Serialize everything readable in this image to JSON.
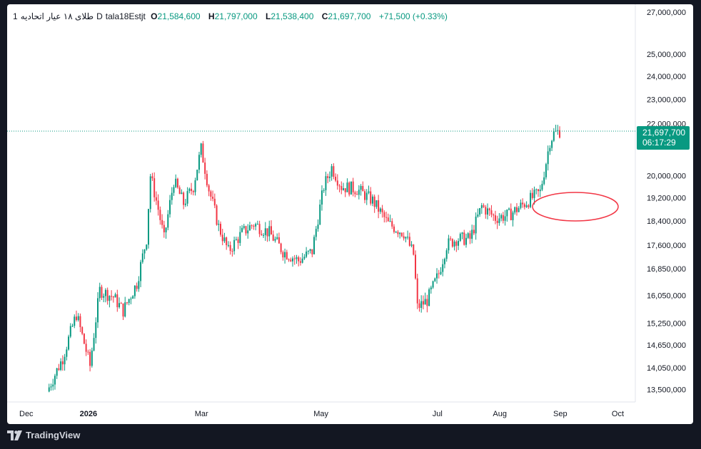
{
  "legend": {
    "interval": "1",
    "symbol": "طلای ۱۸ عیار اتحادیه",
    "timeframe": "D",
    "exchange": "tala18Estjt",
    "open_label": "O",
    "open": "21,584,600",
    "high_label": "H",
    "high": "21,797,000",
    "low_label": "L",
    "low": "21,538,400",
    "close_label": "C",
    "close": "21,697,700",
    "change": "+71,500 (+0.33%)"
  },
  "price_tag": {
    "price": "21,697,700",
    "countdown": "06:17:29"
  },
  "brand": {
    "name": "TradingView"
  },
  "colors": {
    "up": "#089981",
    "down": "#f23645",
    "background": "#ffffff",
    "frame": "#131722",
    "ellipse": "#f23645"
  },
  "chart_data": {
    "type": "candlestick",
    "x_ticks": [
      "Dec",
      "2026",
      "Mar",
      "May",
      "Jul",
      "Aug",
      "Sep",
      "Oct"
    ],
    "y_ticks": [
      "27,000,000",
      "25,000,000",
      "24,000,000",
      "23,000,000",
      "22,000,000",
      "20,000,000",
      "19,200,000",
      "18,400,000",
      "17,600,000",
      "16,850,000",
      "16,050,000",
      "15,250,000",
      "14,650,000",
      "14,050,000",
      "13,500,000"
    ],
    "y_scale": "log",
    "ylim": [
      13200000,
      27300000
    ],
    "last_price": 21697700,
    "series_path": [
      [
        "2025-12-12",
        13450000
      ],
      [
        "2025-12-20",
        14300000
      ],
      [
        "2025-12-27",
        15500000
      ],
      [
        "2026-01-03",
        14100000
      ],
      [
        "2026-01-08",
        16200000
      ],
      [
        "2026-01-15",
        16000000
      ],
      [
        "2026-01-20",
        15600000
      ],
      [
        "2026-01-27",
        16400000
      ],
      [
        "2026-02-01",
        17800000
      ],
      [
        "2026-02-03",
        20000000
      ],
      [
        "2026-02-07",
        18800000
      ],
      [
        "2026-02-10",
        17800000
      ],
      [
        "2026-02-15",
        19800000
      ],
      [
        "2026-02-20",
        19000000
      ],
      [
        "2026-02-25",
        19600000
      ],
      [
        "2026-03-01",
        21000000
      ],
      [
        "2026-03-05",
        19500000
      ],
      [
        "2026-03-10",
        18200000
      ],
      [
        "2026-03-15",
        17400000
      ],
      [
        "2026-03-22",
        18000000
      ],
      [
        "2026-03-28",
        18300000
      ],
      [
        "2026-04-05",
        18000000
      ],
      [
        "2026-04-12",
        17400000
      ],
      [
        "2026-04-20",
        17100000
      ],
      [
        "2026-04-27",
        17400000
      ],
      [
        "2026-05-03",
        19600000
      ],
      [
        "2026-05-07",
        20300000
      ],
      [
        "2026-05-12",
        19600000
      ],
      [
        "2026-05-20",
        19500000
      ],
      [
        "2026-05-28",
        19100000
      ],
      [
        "2026-06-05",
        18300000
      ],
      [
        "2026-06-13",
        18000000
      ],
      [
        "2026-06-18",
        17300000
      ],
      [
        "2026-06-20",
        15700000
      ],
      [
        "2026-06-25",
        15900000
      ],
      [
        "2026-07-01",
        16700000
      ],
      [
        "2026-07-05",
        17600000
      ],
      [
        "2026-07-10",
        17800000
      ],
      [
        "2026-07-17",
        17800000
      ],
      [
        "2026-07-23",
        18900000
      ],
      [
        "2026-07-30",
        18500000
      ],
      [
        "2026-08-06",
        18600000
      ],
      [
        "2026-08-12",
        18900000
      ],
      [
        "2026-08-18",
        19200000
      ],
      [
        "2026-08-22",
        19400000
      ],
      [
        "2026-08-25",
        20500000
      ],
      [
        "2026-08-27",
        21300000
      ],
      [
        "2026-08-29",
        21600000
      ],
      [
        "2026-09-01",
        21697700
      ]
    ],
    "shapes": [
      {
        "type": "ellipse",
        "center_date": "2026-09-15",
        "center_price": 18900000,
        "color": "#f23645"
      }
    ]
  }
}
